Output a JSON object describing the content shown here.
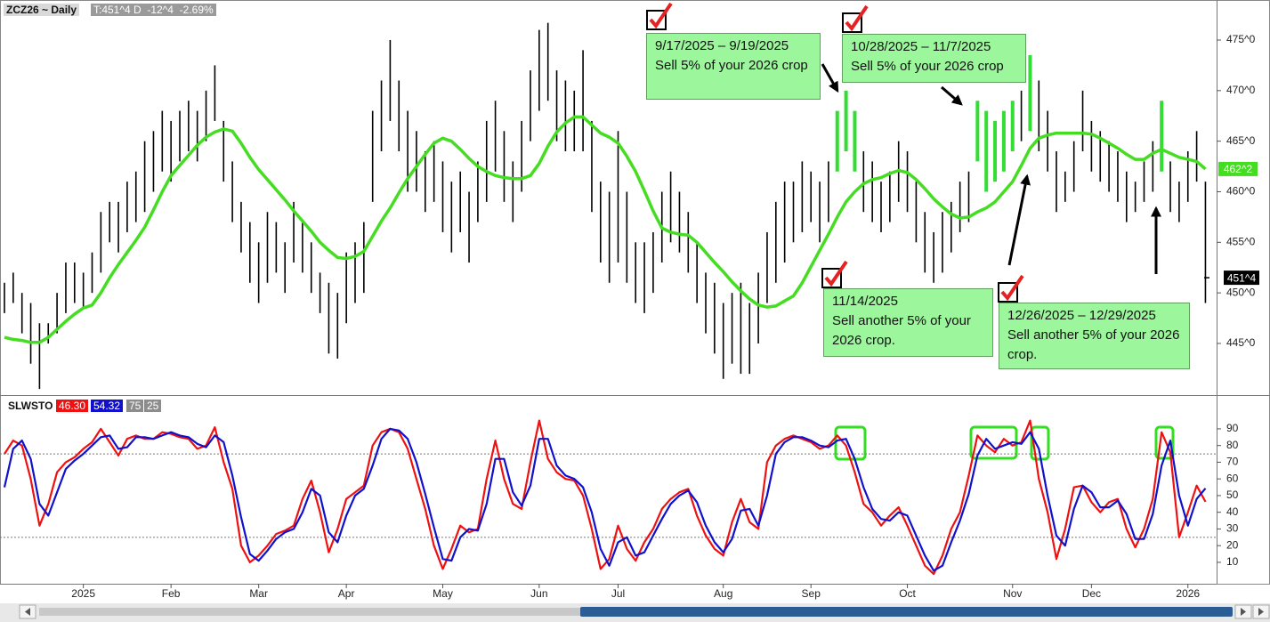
{
  "chart_data": [
    {
      "type": "ohlc",
      "title": "ZCZ26 ~ Daily",
      "subtitle": "T:451^4 D  -12^4  -2.69%",
      "categories": [
        null,
        null,
        null,
        null,
        null,
        null,
        null,
        null,
        null,
        "2025",
        null,
        null,
        null,
        null,
        null,
        null,
        null,
        null,
        null,
        "Feb",
        null,
        null,
        null,
        null,
        null,
        null,
        null,
        null,
        null,
        "Mar",
        null,
        null,
        null,
        null,
        null,
        null,
        null,
        null,
        null,
        "Apr",
        null,
        null,
        null,
        null,
        null,
        null,
        null,
        null,
        null,
        null,
        "May",
        null,
        null,
        null,
        null,
        null,
        null,
        null,
        null,
        null,
        null,
        "Jun",
        null,
        null,
        null,
        null,
        null,
        null,
        null,
        null,
        "Jul",
        null,
        null,
        null,
        null,
        null,
        null,
        null,
        null,
        null,
        null,
        null,
        "Aug",
        null,
        null,
        null,
        null,
        null,
        null,
        null,
        null,
        null,
        "Sep",
        null,
        null,
        null,
        null,
        null,
        null,
        null,
        null,
        null,
        null,
        "Oct",
        null,
        null,
        null,
        null,
        null,
        null,
        null,
        null,
        null,
        null,
        null,
        "Nov",
        null,
        null,
        null,
        null,
        null,
        null,
        null,
        null,
        "Dec",
        null,
        null,
        null,
        null,
        null,
        null,
        null,
        null,
        null,
        null,
        "2026",
        null,
        null
      ],
      "high": [
        451,
        452,
        450,
        449,
        447,
        447,
        450,
        453,
        453,
        452,
        454,
        458,
        459,
        459,
        461,
        462,
        465,
        466,
        468,
        467,
        468,
        469,
        468,
        470,
        472.5,
        467,
        463,
        459,
        457,
        455,
        458,
        457,
        455,
        459,
        457,
        455,
        452,
        451,
        450,
        454,
        455,
        457,
        468,
        471,
        475,
        471,
        468,
        466,
        464,
        465,
        463,
        461,
        462,
        460,
        463,
        467,
        469,
        466,
        463,
        467,
        472,
        476,
        476.7,
        472,
        471,
        470,
        474,
        467,
        461,
        460,
        466,
        460,
        455,
        455,
        456,
        460,
        462,
        460,
        458,
        455,
        452,
        451,
        449,
        450,
        451,
        449,
        452,
        456,
        459,
        461,
        461,
        463,
        462,
        461,
        463,
        468,
        470,
        468,
        464,
        463,
        461,
        462,
        465,
        464,
        461,
        458,
        456,
        458,
        459,
        461,
        462,
        469,
        468,
        467,
        468,
        469,
        470,
        473.5,
        471,
        468,
        464,
        462,
        465,
        470,
        467,
        466,
        465,
        464,
        462,
        461,
        463,
        465,
        469,
        463,
        461,
        464,
        466,
        461
      ],
      "low": [
        448,
        449,
        446,
        443,
        440.5,
        445,
        446,
        448,
        449,
        448.5,
        450,
        452,
        455,
        454,
        456,
        457,
        458,
        460,
        462,
        461,
        463,
        464,
        463,
        465,
        467,
        461,
        457,
        454,
        451,
        449,
        451,
        452,
        450,
        453,
        452,
        450,
        448,
        444,
        443.5,
        447,
        449,
        450,
        459,
        464,
        467,
        464,
        460,
        460,
        458,
        459,
        456,
        454,
        456,
        453,
        457,
        459,
        462,
        459,
        457,
        460,
        465,
        468,
        469,
        465,
        464,
        464,
        464,
        458,
        453,
        451,
        453,
        451,
        449,
        448,
        450,
        453,
        455,
        454,
        452,
        449,
        446,
        444,
        441.5,
        443,
        442,
        442,
        445,
        449,
        451,
        453,
        455,
        456,
        457,
        455,
        457,
        462,
        464,
        462,
        458,
        457,
        456,
        457,
        459,
        458,
        455,
        452,
        451,
        452,
        454,
        456,
        457,
        463,
        460,
        461,
        462,
        464,
        465,
        466,
        464,
        462,
        458,
        459,
        460,
        464,
        462,
        461,
        460,
        459,
        457,
        458,
        459,
        460,
        462,
        458,
        457,
        459,
        461,
        449
      ],
      "last": 451.5,
      "last_label": "451^4",
      "color": "#000000",
      "highlight_color": "#33dd33",
      "highlighted": [
        95,
        96,
        97,
        111,
        112,
        113,
        114,
        115,
        117,
        132
      ],
      "moving_average": {
        "color": "#44dd22",
        "last_label": "462^2",
        "values": [
          445.6,
          445.4,
          445.3,
          445.1,
          445.1,
          445.6,
          446.4,
          447.2,
          447.9,
          448.5,
          448.8,
          450,
          451.5,
          452.8,
          454,
          455.2,
          456.5,
          458.2,
          460,
          461.6,
          462.6,
          463.6,
          464.6,
          465.4,
          465.9,
          466.2,
          466,
          464.8,
          463.4,
          462.2,
          461.2,
          460.2,
          459.2,
          458.1,
          457.1,
          456.1,
          455,
          454.2,
          453.5,
          453.4,
          453.6,
          454.1,
          455.6,
          457.1,
          458.4,
          459.9,
          461.3,
          462.5,
          463.7,
          464.8,
          465.3,
          465,
          464.2,
          463.3,
          462.5,
          462,
          461.6,
          461.4,
          461.3,
          461.3,
          461.6,
          462.8,
          464.5,
          465.9,
          466.8,
          467.4,
          467.4,
          466.6,
          465.8,
          465.4,
          464.8,
          463.5,
          462,
          460.1,
          458.1,
          456.4,
          456,
          455.8,
          455.7,
          455,
          454,
          453,
          452.1,
          451.1,
          450.2,
          449.4,
          448.8,
          448.6,
          448.7,
          449.2,
          449.7,
          451,
          452.6,
          454.2,
          455.8,
          457.5,
          459,
          460,
          460.8,
          461.2,
          461.4,
          461.8,
          462.1,
          461.9,
          461.2,
          460.3,
          459.3,
          458.5,
          457.8,
          457.4,
          457.5,
          458,
          458.4,
          459,
          460,
          461,
          462.6,
          464.3,
          465.3,
          465.6,
          465.8,
          465.8,
          465.8,
          465.8,
          465.7,
          465.3,
          464.8,
          464.3,
          463.7,
          463.2,
          463.2,
          463.8,
          464.2,
          463.8,
          463.4,
          463.2,
          463,
          462.25
        ]
      },
      "ylim": [
        440.07,
        478.96
      ],
      "yticks": [
        {
          "value": 445,
          "label": "445^0"
        },
        {
          "value": 450,
          "label": "450^0"
        },
        {
          "value": 455,
          "label": "455^0"
        },
        {
          "value": 460,
          "label": "460^0"
        },
        {
          "value": 465,
          "label": "465^0"
        },
        {
          "value": 470,
          "label": "470^0"
        },
        {
          "value": 475,
          "label": "475^0"
        }
      ],
      "annotations": [
        {
          "date": "9/17/2025 – 9/19/2025",
          "text": "Sell 5% of your 2026 crop"
        },
        {
          "date": "10/28/2025 – 11/7/2025",
          "text": "Sell 5% of your 2026 crop"
        },
        {
          "date": "11/14/2025",
          "text": "Sell another 5% of your 2026 crop."
        },
        {
          "date": "12/26/2025 – 12/29/2025",
          "text": "Sell another 5% of your 2026 crop."
        }
      ]
    },
    {
      "type": "line",
      "title": "SLWSTO",
      "series": [
        {
          "color": "#ee1111",
          "last_label": "46.30",
          "values": [
            75,
            83,
            80,
            60,
            32,
            45,
            64,
            70,
            73,
            78,
            82,
            90,
            82,
            74,
            84,
            86,
            84,
            84,
            88,
            87,
            85,
            84,
            78,
            80,
            91,
            70,
            54,
            20,
            10,
            14,
            20,
            27,
            29,
            32,
            48,
            59,
            40,
            16,
            30,
            48,
            52,
            56,
            80,
            88,
            90,
            88,
            78,
            60,
            42,
            20,
            6,
            18,
            32,
            28,
            30,
            60,
            83,
            60,
            45,
            42,
            70,
            95,
            72,
            64,
            60,
            59,
            50,
            30,
            6,
            12,
            32,
            18,
            11,
            22,
            30,
            42,
            48,
            52,
            54,
            38,
            26,
            18,
            14,
            34,
            48,
            34,
            30,
            70,
            80,
            84,
            86,
            84,
            82,
            78,
            80,
            86,
            80,
            64,
            45,
            40,
            32,
            38,
            43,
            32,
            20,
            8,
            3,
            14,
            30,
            40,
            62,
            86,
            80,
            76,
            84,
            80,
            82,
            95,
            60,
            40,
            12,
            30,
            55,
            56,
            46,
            40,
            46,
            48,
            30,
            19,
            30,
            48,
            88,
            76,
            25,
            40,
            56,
            46.3
          ]
        },
        {
          "color": "#1111cc",
          "last_label": "54.32",
          "values": [
            55,
            78,
            83,
            72,
            45,
            38,
            52,
            66,
            71,
            75,
            80,
            85,
            86,
            78,
            79,
            85,
            85,
            84,
            86,
            88,
            86,
            85,
            81,
            79,
            86,
            82,
            62,
            37,
            15,
            11,
            17,
            24,
            28,
            30,
            40,
            54,
            50,
            28,
            22,
            38,
            50,
            54,
            68,
            84,
            90,
            89,
            84,
            70,
            51,
            31,
            12,
            11,
            25,
            30,
            29,
            45,
            72,
            72,
            52,
            44,
            56,
            84,
            84,
            68,
            62,
            60,
            55,
            40,
            18,
            8,
            22,
            25,
            14,
            16,
            26,
            36,
            45,
            50,
            53,
            46,
            32,
            22,
            16,
            24,
            41,
            42,
            32,
            50,
            75,
            82,
            85,
            85,
            83,
            80,
            79,
            83,
            84,
            72,
            55,
            42,
            36,
            35,
            40,
            38,
            26,
            14,
            5,
            8,
            22,
            35,
            51,
            74,
            84,
            78,
            80,
            82,
            81,
            88,
            78,
            50,
            26,
            20,
            42,
            56,
            52,
            43,
            43,
            47,
            39,
            24,
            24,
            39,
            68,
            83,
            50,
            32,
            48,
            54.32
          ]
        }
      ],
      "levels": [
        75,
        25
      ],
      "ylim": [
        -2.3,
        108.1
      ],
      "yticks": [
        10,
        20,
        30,
        40,
        50,
        60,
        70,
        80,
        90
      ]
    }
  ]
}
